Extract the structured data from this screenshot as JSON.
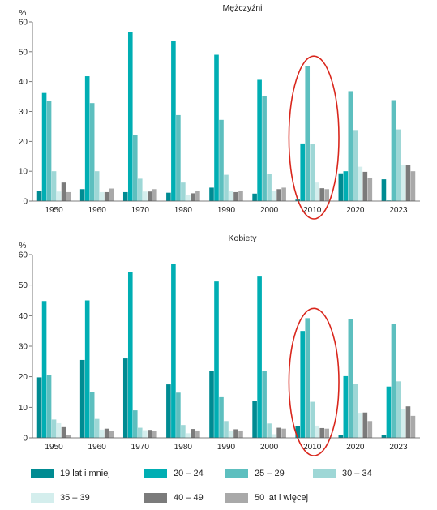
{
  "legend": [
    {
      "label": "19 lat i mniej",
      "color": "#008b92"
    },
    {
      "label": "20 – 24",
      "color": "#00aeb3"
    },
    {
      "label": "25 – 29",
      "color": "#5dbfbf"
    },
    {
      "label": "30 – 34",
      "color": "#9ed7d6"
    },
    {
      "label": "35 – 39",
      "color": "#d4eeed"
    },
    {
      "label": "40 – 49",
      "color": "#7b7b7b"
    },
    {
      "label": "50 lat i więcej",
      "color": "#a9a9a9"
    }
  ],
  "annotation_color": "#d9261c",
  "chart_data": [
    {
      "type": "bar",
      "title": "Mężczyźni",
      "ylabel": "%",
      "ylim": [
        0,
        60
      ],
      "yticks": [
        0,
        10,
        20,
        30,
        40,
        50,
        60
      ],
      "categories": [
        "1950",
        "1960",
        "1970",
        "1980",
        "1990",
        "2000",
        "2010",
        "2020",
        "2023"
      ],
      "series": [
        {
          "name": "19 lat i mniej",
          "values": [
            3.5,
            4.0,
            3.0,
            2.8,
            4.5,
            2.5,
            0.5,
            9.3,
            7.3
          ]
        },
        {
          "name": "20 – 24",
          "values": [
            36.2,
            41.8,
            56.5,
            53.5,
            49.0,
            40.6,
            19.3,
            10.0,
            0.2
          ]
        },
        {
          "name": "25 – 29",
          "values": [
            33.5,
            32.8,
            22.0,
            28.8,
            27.2,
            35.2,
            45.3,
            36.8,
            33.8
          ]
        },
        {
          "name": "30 – 34",
          "values": [
            10.0,
            10.0,
            7.5,
            6.2,
            8.8,
            9.0,
            19.0,
            23.8,
            24.0
          ]
        },
        {
          "name": "35 – 39",
          "values": [
            3.2,
            3.0,
            3.2,
            2.0,
            3.4,
            3.5,
            6.2,
            11.5,
            12.2
          ]
        },
        {
          "name": "40 – 49",
          "values": [
            6.2,
            3.0,
            3.2,
            2.6,
            3.0,
            4.0,
            4.3,
            9.8,
            12.0
          ]
        },
        {
          "name": "50 lat i więcej",
          "values": [
            3.0,
            4.2,
            4.0,
            3.5,
            3.3,
            4.5,
            4.0,
            7.8,
            10.0
          ]
        }
      ],
      "highlight_category": "2010"
    },
    {
      "type": "bar",
      "title": "Kobiety",
      "ylabel": "%",
      "ylim": [
        0,
        60
      ],
      "yticks": [
        0,
        10,
        20,
        30,
        40,
        50,
        60
      ],
      "categories": [
        "1950",
        "1960",
        "1970",
        "1980",
        "1990",
        "2000",
        "2010",
        "2020",
        "2023"
      ],
      "series": [
        {
          "name": "19 lat i mniej",
          "values": [
            19.8,
            25.5,
            26.0,
            17.5,
            22.0,
            12.0,
            3.8,
            0.8,
            0.8
          ]
        },
        {
          "name": "20 – 24",
          "values": [
            44.8,
            45.0,
            54.4,
            57.0,
            51.2,
            52.8,
            35.0,
            20.2,
            16.8
          ]
        },
        {
          "name": "25 – 29",
          "values": [
            20.5,
            15.0,
            9.0,
            14.8,
            13.3,
            21.8,
            39.2,
            38.8,
            37.2
          ]
        },
        {
          "name": "30 – 34",
          "values": [
            6.0,
            6.2,
            3.3,
            4.2,
            5.5,
            4.7,
            11.8,
            17.6,
            18.5
          ]
        },
        {
          "name": "35 – 39",
          "values": [
            4.8,
            2.7,
            2.5,
            1.5,
            2.2,
            1.2,
            4.0,
            8.2,
            9.5
          ]
        },
        {
          "name": "40 – 49",
          "values": [
            3.5,
            3.0,
            2.6,
            2.9,
            2.8,
            3.3,
            3.2,
            8.3,
            10.3
          ]
        },
        {
          "name": "50 lat i więcej",
          "values": [
            1.0,
            2.2,
            2.3,
            2.4,
            2.4,
            3.0,
            3.0,
            5.5,
            7.2
          ]
        }
      ],
      "highlight_category": "2010"
    }
  ]
}
